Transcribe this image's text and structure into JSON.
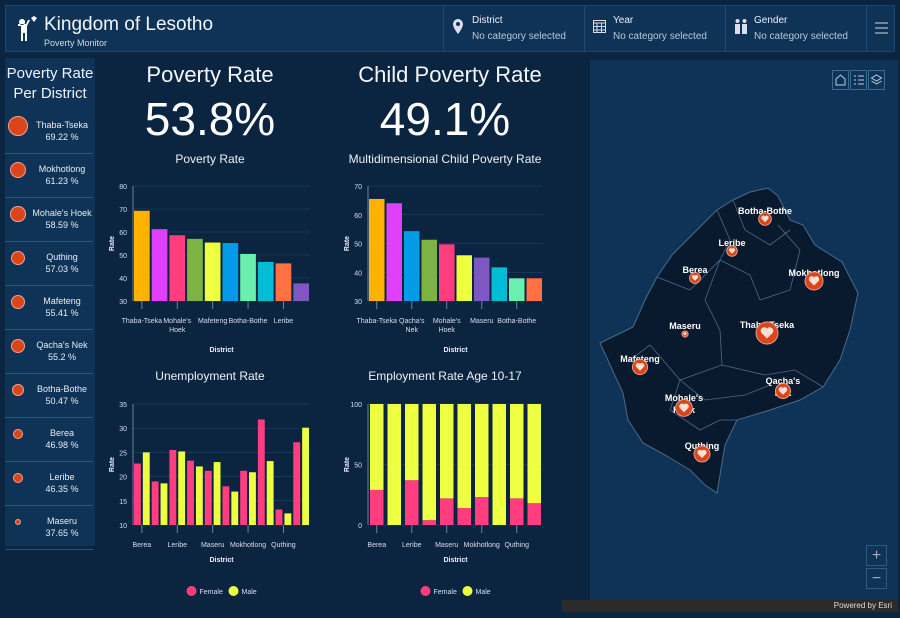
{
  "header": {
    "title": "Kingdom of Lesotho",
    "subtitle": "Poverty Monitor",
    "filters": [
      {
        "label": "District",
        "value": "No category selected",
        "icon": "map-pin-icon"
      },
      {
        "label": "Year",
        "value": "No category selected",
        "icon": "calendar-icon"
      },
      {
        "label": "Gender",
        "value": "No category selected",
        "icon": "people-icon"
      }
    ],
    "menu_icon": "hamburger-menu-icon"
  },
  "sidebar": {
    "title_line1": "Poverty Rate",
    "title_line2": "Per District",
    "items": [
      {
        "name": "Thaba-Tseka",
        "value": "69.22 %"
      },
      {
        "name": "Mokhotlong",
        "value": "61.23 %"
      },
      {
        "name": "Mohale's Hoek",
        "value": "58.59 %"
      },
      {
        "name": "Quthing",
        "value": "57.03 %"
      },
      {
        "name": "Mafeteng",
        "value": "55.41 %"
      },
      {
        "name": "Qacha's Nek",
        "value": "55.2 %"
      },
      {
        "name": "Botha-Bothe",
        "value": "50.47 %"
      },
      {
        "name": "Berea",
        "value": "46.98 %"
      },
      {
        "name": "Leribe",
        "value": "46.35 %"
      },
      {
        "name": "Maseru",
        "value": "37.65 %"
      }
    ]
  },
  "kpis": [
    {
      "title": "Poverty Rate",
      "value": "53.8%"
    },
    {
      "title": "Child Poverty  Rate",
      "value": "49.1%"
    }
  ],
  "chart_data": [
    {
      "type": "bar",
      "title": "Poverty Rate",
      "xlabel": "District",
      "ylabel": "Rate",
      "ylim": [
        30,
        80
      ],
      "yticks": [
        30,
        40,
        50,
        60,
        70,
        80
      ],
      "categories": [
        "Thaba-Tseka",
        "Mokhotlong",
        "Mohale's Hoek",
        "Quthing",
        "Mafeteng",
        "Qacha's Nek",
        "Botha-Bothe",
        "Berea",
        "Leribe",
        "Maseru"
      ],
      "shown_labels": [
        "Thaba-Tseka",
        "",
        "Mohale's Hoek",
        "",
        "Mafeteng",
        "",
        "Botha-Bothe",
        "",
        "Leribe",
        ""
      ],
      "values": [
        69.22,
        61.23,
        58.59,
        57.03,
        55.41,
        55.2,
        50.47,
        46.98,
        46.35,
        37.65
      ],
      "colors": [
        "#ffb300",
        "#e040fb",
        "#ff3d7f",
        "#7cb342",
        "#eeff41",
        "#039be5",
        "#69f0ae",
        "#00bcd4",
        "#ff7043",
        "#7e57c2"
      ]
    },
    {
      "type": "bar",
      "title": "Multidimensional Child Poverty Rate",
      "xlabel": "District",
      "ylabel": "Rate",
      "ylim": [
        30,
        70
      ],
      "yticks": [
        30,
        40,
        50,
        60,
        70
      ],
      "categories": [
        "Thaba-Tseka",
        "",
        "Qacha's Nek",
        "",
        "Mohale's Hoek",
        "",
        "Maseru",
        "",
        "Botha-Bothe",
        ""
      ],
      "values": [
        65.5,
        64,
        54.3,
        51.3,
        49.7,
        45.9,
        45.1,
        41.7,
        37.9,
        37.9
      ],
      "colors": [
        "#ffb300",
        "#e040fb",
        "#039be5",
        "#7cb342",
        "#ff3d7f",
        "#eeff41",
        "#7e57c2",
        "#00bcd4",
        "#69f0ae",
        "#ff7043"
      ]
    },
    {
      "type": "bar",
      "title": "Unemployment Rate",
      "xlabel": "District",
      "ylabel": "Rate",
      "ylim": [
        10,
        35
      ],
      "yticks": [
        10,
        15,
        20,
        25,
        30,
        35
      ],
      "categories": [
        "Berea",
        "Botha-Bothe",
        "Leribe",
        "Mafeteng",
        "Maseru",
        "Mohale's Hoek",
        "Mokhotlong",
        "Qacha's Nek",
        "Quthing",
        "Thaba-Tseka"
      ],
      "shown_labels": [
        "Berea",
        "",
        "Leribe",
        "",
        "Maseru",
        "",
        "Mokhotlong",
        "",
        "Quthing",
        ""
      ],
      "legend": "bottom",
      "series": [
        {
          "name": "Female",
          "color": "#ff3d7f",
          "values": [
            22.7,
            19,
            25.5,
            23.3,
            21.2,
            18,
            21.2,
            31.8,
            13.2,
            27.1
          ]
        },
        {
          "name": "Male",
          "color": "#eeff41",
          "values": [
            25,
            18.6,
            25.2,
            22.1,
            23,
            16.9,
            20.9,
            23.2,
            12.4,
            30.1
          ]
        }
      ]
    },
    {
      "type": "bar",
      "stacked": true,
      "title": "Employment Rate Age 10-17",
      "xlabel": "District",
      "ylabel": "Rate",
      "ylim": [
        0,
        100
      ],
      "yticks": [
        0,
        50,
        100
      ],
      "categories": [
        "Berea",
        "Botha-Bothe",
        "Leribe",
        "Mafeteng",
        "Maseru",
        "Mohale's Hoek",
        "Mokhotlong",
        "Qacha's Nek",
        "Quthing",
        "Thaba-Tseka"
      ],
      "shown_labels": [
        "Berea",
        "",
        "Leribe",
        "",
        "Maseru",
        "",
        "Mokhotlong",
        "",
        "Quthing",
        ""
      ],
      "legend": "bottom",
      "series": [
        {
          "name": "Female",
          "color": "#ff3d7f",
          "values": [
            29,
            0,
            37,
            4,
            22,
            14,
            23,
            0,
            22,
            18
          ]
        },
        {
          "name": "Male",
          "color": "#eeff41",
          "values": [
            71,
            100,
            63,
            96,
            78,
            86,
            77,
            100,
            78,
            82
          ]
        }
      ]
    }
  ],
  "map": {
    "labels": [
      "Botha-Bothe",
      "Leribe",
      "Berea",
      "Mokhotlong",
      "Maseru",
      "Thaba-Tseka",
      "Mafeteng",
      "Mohale's Hoek",
      "Qacha's Nek",
      "Quthing"
    ],
    "buttons": [
      "home-icon",
      "legend-icon",
      "layers-icon"
    ],
    "zoom_in": "+",
    "zoom_out": "−",
    "attribution": "Powered by Esri",
    "marker_color": "#d9461c",
    "land_color": "#0a1a2e"
  }
}
